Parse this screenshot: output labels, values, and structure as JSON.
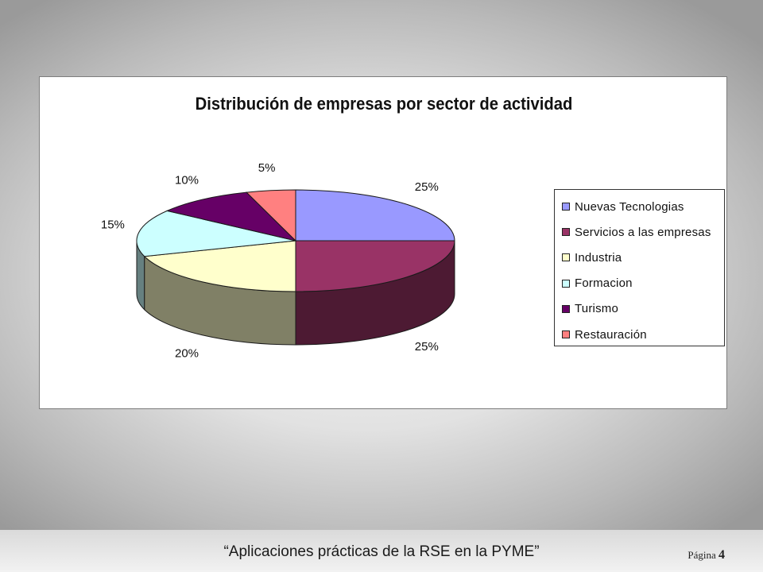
{
  "chart_data": {
    "type": "pie",
    "title": "Distribución de empresas por sector de actividad",
    "categories": [
      "Nuevas Tecnologias",
      "Servicios a las empresas",
      "Industria",
      "Formacion",
      "Turismo",
      "Restauración"
    ],
    "values": [
      25,
      25,
      20,
      15,
      10,
      5
    ],
    "data_labels": [
      "25%",
      "25%",
      "20%",
      "15%",
      "10%",
      "5%"
    ],
    "colors": [
      "#9999FF",
      "#993366",
      "#FFFFCC",
      "#CCFFFF",
      "#660066",
      "#FF8080"
    ],
    "style": "3d",
    "legend_position": "right"
  },
  "footer": {
    "text": "“Aplicaciones prácticas de la RSE en la PYME”",
    "page_label": "Página",
    "page_number": "4"
  }
}
